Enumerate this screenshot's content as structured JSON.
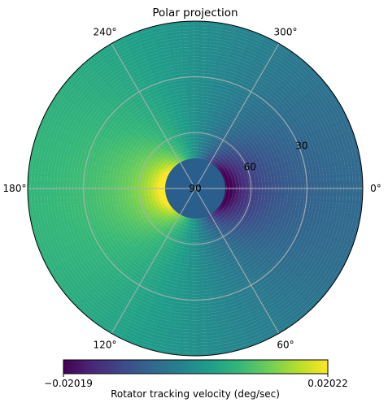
{
  "chart_data": {
    "type": "heatmap",
    "projection": "polar",
    "title": "Polar projection",
    "angular_ticks": [
      {
        "deg": 0,
        "label": "0°"
      },
      {
        "deg": 60,
        "label": "60°"
      },
      {
        "deg": 120,
        "label": "120°"
      },
      {
        "deg": 180,
        "label": "180°"
      },
      {
        "deg": 240,
        "label": "240°"
      },
      {
        "deg": 300,
        "label": "300°"
      }
    ],
    "radial_ticks": [
      {
        "value": 90,
        "label": "90"
      },
      {
        "value": 60,
        "label": "60"
      },
      {
        "value": 30,
        "label": "30"
      }
    ],
    "radial_range": [
      90,
      0
    ],
    "inner_radius_value": 82,
    "colorbar": {
      "label": "Rotator tracking velocity (deg/sec)",
      "min": -0.02019,
      "max": 0.02022,
      "min_label": "−0.02019",
      "max_label": "0.02022",
      "colormap": "viridis"
    },
    "grid": true,
    "colors": {
      "viridis": [
        "#440154",
        "#482878",
        "#3e4989",
        "#31688e",
        "#26828e",
        "#1f9e89",
        "#35b779",
        "#6ece58",
        "#b5de2b",
        "#fde725"
      ],
      "grid": "#b0b0b0"
    }
  }
}
